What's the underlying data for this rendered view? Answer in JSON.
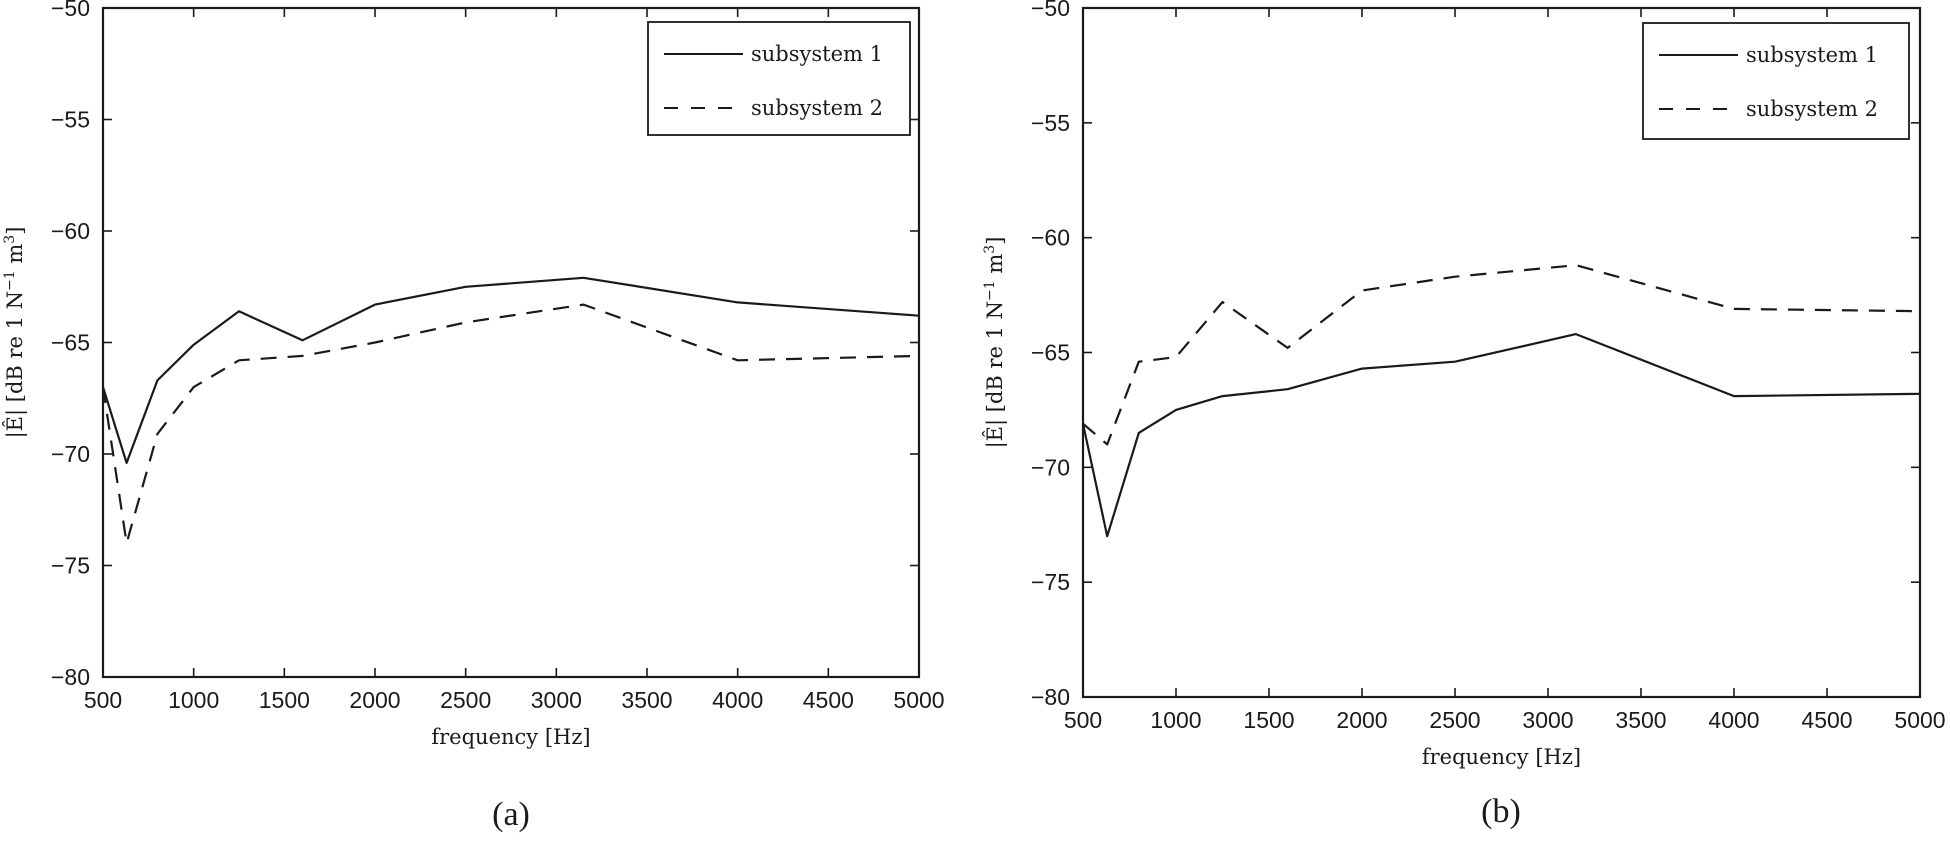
{
  "chart_data": [
    {
      "panel": "(a)",
      "type": "line",
      "title": "",
      "xlabel": "frequency [Hz]",
      "ylabel": "|Ê| [dB re 1 N⁻¹ m³]",
      "xlim": [
        500,
        5000
      ],
      "ylim": [
        -80,
        -50
      ],
      "xticks": [
        500,
        1000,
        1500,
        2000,
        2500,
        3000,
        3500,
        4000,
        4500,
        5000
      ],
      "yticks": [
        -50,
        -55,
        -60,
        -65,
        -70,
        -75,
        -80
      ],
      "grid": false,
      "legend_position": "upper right",
      "x": [
        500,
        630,
        800,
        1000,
        1250,
        1600,
        2000,
        2500,
        3150,
        4000,
        5000
      ],
      "series": [
        {
          "name": "subsystem 1",
          "style": "solid",
          "values": [
            -67.0,
            -70.4,
            -66.7,
            -65.1,
            -63.6,
            -64.9,
            -63.3,
            -62.5,
            -62.1,
            -63.2,
            -63.8
          ]
        },
        {
          "name": "subsystem 2",
          "style": "dashed",
          "values": [
            -67.0,
            -74.0,
            -69.1,
            -67.0,
            -65.8,
            -65.6,
            -65.0,
            -64.1,
            -63.3,
            -65.8,
            -65.6
          ]
        }
      ]
    },
    {
      "panel": "(b)",
      "type": "line",
      "title": "",
      "xlabel": "frequency [Hz]",
      "ylabel": "|Ê| [dB re 1 N⁻¹ m³]",
      "xlim": [
        500,
        5000
      ],
      "ylim": [
        -80,
        -50
      ],
      "xticks": [
        500,
        1000,
        1500,
        2000,
        2500,
        3000,
        3500,
        4000,
        4500,
        5000
      ],
      "yticks": [
        -50,
        -55,
        -60,
        -65,
        -70,
        -75,
        -80
      ],
      "grid": false,
      "legend_position": "upper right",
      "x": [
        500,
        630,
        800,
        1000,
        1250,
        1600,
        2000,
        2500,
        3150,
        4000,
        5000
      ],
      "series": [
        {
          "name": "subsystem 1",
          "style": "solid",
          "values": [
            -68.1,
            -73.0,
            -68.5,
            -67.5,
            -66.9,
            -66.6,
            -65.7,
            -65.4,
            -64.2,
            -66.9,
            -66.8
          ]
        },
        {
          "name": "subsystem 2",
          "style": "dashed",
          "values": [
            -68.1,
            -69.0,
            -65.4,
            -65.2,
            -62.8,
            -64.8,
            -62.3,
            -61.7,
            -61.2,
            -63.1,
            -63.2
          ]
        }
      ]
    }
  ],
  "panels": [
    {
      "caption": "(a)",
      "xlabel": "frequency [Hz]",
      "ylabel_main": "|Ê| [dB re 1 N",
      "ylabel_sup1": "−1",
      "ylabel_mid": " m",
      "ylabel_sup2": "3",
      "ylabel_end": "]",
      "legend": [
        "subsystem 1",
        "subsystem 2"
      ],
      "xtick_labels": [
        "500",
        "1000",
        "1500",
        "2000",
        "2500",
        "3000",
        "3500",
        "4000",
        "4500",
        "5000"
      ],
      "ytick_labels": [
        "−50",
        "−55",
        "−60",
        "−65",
        "−70",
        "−75",
        "−80"
      ]
    },
    {
      "caption": "(b)",
      "xlabel": "frequency [Hz]",
      "ylabel_main": "|Ê| [dB re 1 N",
      "ylabel_sup1": "−1",
      "ylabel_mid": " m",
      "ylabel_sup2": "3",
      "ylabel_end": "]",
      "legend": [
        "subsystem 1",
        "subsystem 2"
      ],
      "xtick_labels": [
        "500",
        "1000",
        "1500",
        "2000",
        "2500",
        "3000",
        "3500",
        "4000",
        "4500",
        "5000"
      ],
      "ytick_labels": [
        "−50",
        "−55",
        "−60",
        "−65",
        "−70",
        "−75",
        "−80"
      ]
    }
  ],
  "colors": {
    "line": "#1a1a1a",
    "axis": "#1a1a1a",
    "background": "#ffffff"
  }
}
